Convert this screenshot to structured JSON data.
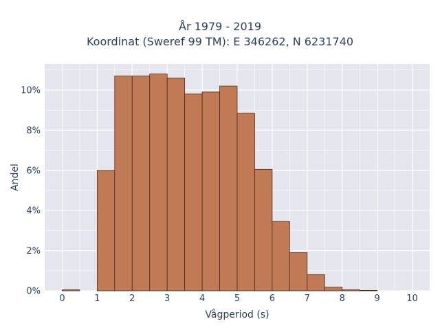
{
  "chart_data": {
    "type": "bar",
    "title": "År 1979 - 2019",
    "subtitle": "Koordinat (Sweref 99 TM): E 346262, N 6231740",
    "xlabel": "Vågperiod (s)",
    "ylabel": "Andel",
    "bin_width": 0.5,
    "bin_starts": [
      0,
      0.5,
      1,
      1.5,
      2,
      2.5,
      3,
      3.5,
      4,
      4.5,
      5,
      5.5,
      6,
      6.5,
      7,
      7.5,
      8,
      8.5,
      9,
      9.5
    ],
    "values": [
      0.05,
      0,
      6.0,
      10.7,
      10.7,
      10.8,
      10.6,
      9.8,
      9.9,
      10.2,
      8.85,
      6.05,
      3.45,
      1.9,
      0.8,
      0.18,
      0.05,
      0.02,
      0,
      0
    ],
    "xlim": [
      -0.5,
      10.5
    ],
    "ylim": [
      0,
      11.3
    ],
    "x_ticks": [
      0,
      1,
      2,
      3,
      4,
      5,
      6,
      7,
      8,
      9,
      10
    ],
    "y_ticks": [
      0,
      2,
      4,
      6,
      8,
      10
    ],
    "y_tick_labels": [
      "0%",
      "2%",
      "4%",
      "6%",
      "8%",
      "10%"
    ],
    "grid": true,
    "colors": {
      "bar_fill": "#c07a55",
      "bar_stroke": "#4a2a18",
      "plot_bg": "#e5e5ee",
      "grid": "#ffffff"
    }
  }
}
